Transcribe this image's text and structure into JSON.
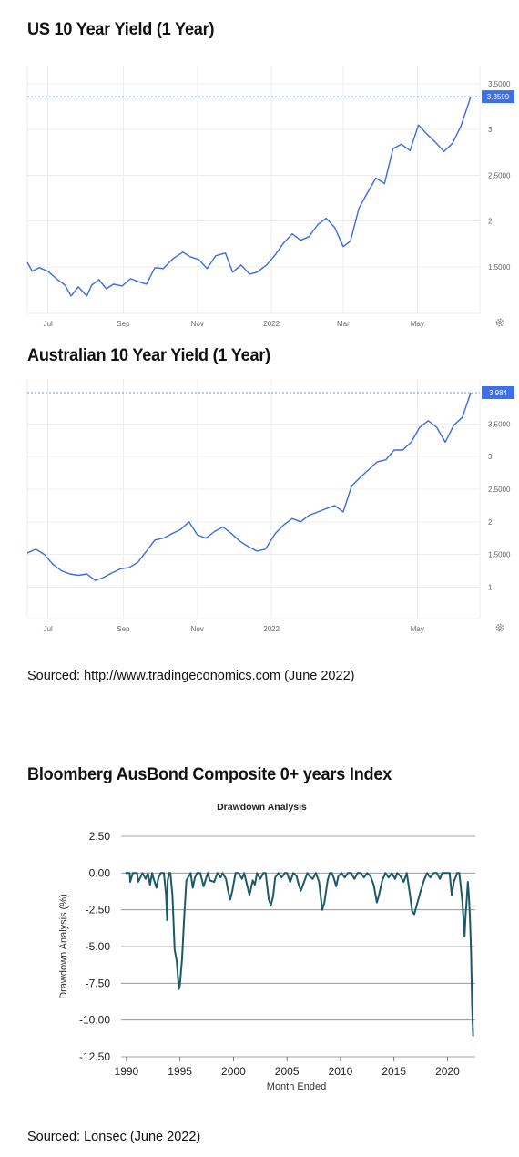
{
  "sections": [
    {
      "title": "US 10 Year Yield (1 Year)"
    },
    {
      "title": "Australian 10 Year Yield (1 Year)"
    },
    {
      "title": "Bloomberg AusBond  Composite 0+ years Index"
    }
  ],
  "sources": [
    "Sourced: http://www.tradingeconomics.com (June 2022)",
    "Sourced: Lonsec (June 2022)"
  ],
  "colors": {
    "line_blue": "#3b6bde",
    "badge_blue": "#3d6fe8",
    "drawdown_teal": "#1e5a66",
    "grid": "#ececec",
    "dd_grid": "#888888"
  },
  "chart_data": [
    {
      "type": "line",
      "title": "US 10 Year Yield (1 Year)",
      "x_tick_labels": [
        "Jul",
        "Sep",
        "Nov",
        "2022",
        "Mar",
        "May"
      ],
      "y_tick_labels": [
        "1.5000",
        "2",
        "2.5000",
        "3",
        "3.5000"
      ],
      "ylim": [
        1.05,
        3.6
      ],
      "last_value_label": "3.3599",
      "settings_icon": "gear-icon",
      "series": [
        {
          "x": [
            "2021-06-14",
            "2021-06-18",
            "2021-06-24",
            "2021-07-01",
            "2021-07-08",
            "2021-07-15",
            "2021-07-20",
            "2021-07-26",
            "2021-08-02",
            "2021-08-06",
            "2021-08-12",
            "2021-08-18",
            "2021-08-24",
            "2021-08-31",
            "2021-09-07",
            "2021-09-13",
            "2021-09-20",
            "2021-09-27",
            "2021-10-04",
            "2021-10-12",
            "2021-10-20",
            "2021-10-26",
            "2021-11-02",
            "2021-11-09",
            "2021-11-16",
            "2021-11-24",
            "2021-11-30",
            "2021-12-07",
            "2021-12-14",
            "2021-12-20",
            "2021-12-28",
            "2022-01-04",
            "2022-01-11",
            "2022-01-18",
            "2022-01-25",
            "2022-02-01",
            "2022-02-08",
            "2022-02-15",
            "2022-02-22",
            "2022-03-01",
            "2022-03-07",
            "2022-03-14",
            "2022-03-21",
            "2022-03-28",
            "2022-04-04",
            "2022-04-11",
            "2022-04-18",
            "2022-04-25",
            "2022-05-02",
            "2022-05-09",
            "2022-05-16",
            "2022-05-23",
            "2022-05-30",
            "2022-06-06",
            "2022-06-14"
          ],
          "values": [
            1.55,
            1.45,
            1.49,
            1.45,
            1.37,
            1.3,
            1.18,
            1.28,
            1.18,
            1.3,
            1.36,
            1.26,
            1.31,
            1.29,
            1.37,
            1.34,
            1.31,
            1.49,
            1.48,
            1.59,
            1.66,
            1.61,
            1.58,
            1.48,
            1.62,
            1.65,
            1.44,
            1.52,
            1.42,
            1.44,
            1.52,
            1.63,
            1.76,
            1.86,
            1.79,
            1.83,
            1.96,
            2.03,
            1.93,
            1.72,
            1.78,
            2.14,
            2.31,
            2.47,
            2.41,
            2.79,
            2.84,
            2.77,
            3.05,
            2.95,
            2.86,
            2.76,
            2.85,
            3.04,
            3.36
          ]
        }
      ]
    },
    {
      "type": "line",
      "title": "Australian 10 Year Yield (1 Year)",
      "x_tick_labels": [
        "Jul",
        "Sep",
        "Nov",
        "2022",
        "May"
      ],
      "y_tick_labels": [
        "1",
        "1.5000",
        "2",
        "2.5000",
        "3",
        "3.5000"
      ],
      "ylim": [
        0.6,
        4.05
      ],
      "last_value_label": "3.984",
      "settings_icon": "gear-icon",
      "series": [
        {
          "x": [
            "2021-06-14",
            "2021-06-21",
            "2021-06-28",
            "2021-07-05",
            "2021-07-12",
            "2021-07-19",
            "2021-07-26",
            "2021-08-02",
            "2021-08-09",
            "2021-08-16",
            "2021-08-23",
            "2021-08-30",
            "2021-09-06",
            "2021-09-13",
            "2021-09-20",
            "2021-09-27",
            "2021-10-04",
            "2021-10-11",
            "2021-10-18",
            "2021-10-25",
            "2021-11-01",
            "2021-11-08",
            "2021-11-15",
            "2021-11-22",
            "2021-11-29",
            "2021-12-06",
            "2021-12-13",
            "2021-12-20",
            "2021-12-27",
            "2022-01-04",
            "2022-01-11",
            "2022-01-18",
            "2022-01-25",
            "2022-02-01",
            "2022-02-08",
            "2022-02-15",
            "2022-02-22",
            "2022-03-01",
            "2022-03-08",
            "2022-03-15",
            "2022-03-22",
            "2022-03-29",
            "2022-04-05",
            "2022-04-12",
            "2022-04-19",
            "2022-04-26",
            "2022-05-03",
            "2022-05-10",
            "2022-05-17",
            "2022-05-24",
            "2022-05-31",
            "2022-06-07",
            "2022-06-14"
          ],
          "values": [
            1.52,
            1.58,
            1.5,
            1.35,
            1.25,
            1.2,
            1.18,
            1.2,
            1.1,
            1.15,
            1.22,
            1.28,
            1.3,
            1.38,
            1.55,
            1.72,
            1.75,
            1.82,
            1.88,
            2.0,
            1.8,
            1.75,
            1.85,
            1.92,
            1.82,
            1.7,
            1.62,
            1.55,
            1.58,
            1.82,
            1.95,
            2.05,
            2.0,
            2.1,
            2.15,
            2.2,
            2.25,
            2.15,
            2.55,
            2.68,
            2.8,
            2.92,
            2.95,
            3.1,
            3.1,
            3.22,
            3.45,
            3.55,
            3.45,
            3.22,
            3.48,
            3.6,
            3.98
          ]
        }
      ]
    },
    {
      "type": "line",
      "title": "Drawdown Analysis",
      "xlabel": "Month Ended",
      "ylabel": "Drawdown Analysis (%)",
      "x_tick_labels": [
        "1990",
        "1995",
        "2000",
        "2005",
        "2010",
        "2015",
        "2020"
      ],
      "y_tick_labels": [
        "2.50",
        "0.00",
        "-2.50",
        "-5.00",
        "-7.50",
        "-10.00",
        "-12.50"
      ],
      "xlim": [
        1989.5,
        2022.6
      ],
      "ylim": [
        -12.5,
        2.5
      ],
      "grid": true,
      "series": [
        {
          "x": [
            1989.9,
            1990.3,
            1990.35,
            1990.6,
            1991.0,
            1991.1,
            1991.5,
            1991.8,
            1992.0,
            1992.2,
            1992.4,
            1992.5,
            1992.8,
            1993.0,
            1993.2,
            1993.5,
            1993.7,
            1993.8,
            1993.85,
            1994.0,
            1994.1,
            1994.3,
            1994.5,
            1994.7,
            1994.9,
            1995.0,
            1995.2,
            1995.4,
            1995.6,
            1996.0,
            1996.2,
            1996.4,
            1996.6,
            1996.9,
            1997.2,
            1997.6,
            1997.8,
            1998.2,
            1998.5,
            1998.8,
            1999.0,
            1999.3,
            1999.5,
            1999.7,
            1999.9,
            2000.2,
            2000.5,
            2000.8,
            2001.0,
            2001.2,
            2001.5,
            2001.8,
            2002.0,
            2002.2,
            2002.5,
            2002.8,
            2003.0,
            2003.3,
            2003.5,
            2003.7,
            2003.9,
            2004.2,
            2004.5,
            2004.8,
            2005.0,
            2005.3,
            2005.6,
            2005.9,
            2006.1,
            2006.3,
            2006.6,
            2006.9,
            2007.1,
            2007.4,
            2007.7,
            2008.0,
            2008.3,
            2008.5,
            2008.8,
            2009.0,
            2009.2,
            2009.4,
            2009.6,
            2009.8,
            2010.1,
            2010.4,
            2010.7,
            2011.0,
            2011.3,
            2011.6,
            2011.9,
            2012.2,
            2012.5,
            2012.8,
            2013.1,
            2013.4,
            2013.6,
            2013.9,
            2014.2,
            2014.5,
            2014.8,
            2015.1,
            2015.3,
            2015.6,
            2015.9,
            2016.2,
            2016.5,
            2016.7,
            2016.9,
            2017.2,
            2017.5,
            2017.8,
            2018.1,
            2018.4,
            2018.7,
            2019.0,
            2019.3,
            2019.5,
            2019.8,
            2020.0,
            2020.2,
            2020.4,
            2020.6,
            2020.9,
            2021.1,
            2021.2,
            2021.4,
            2021.6,
            2021.7,
            2021.8,
            2021.9,
            2022.0,
            2022.1,
            2022.2,
            2022.3,
            2022.4
          ],
          "values": [
            0,
            0,
            -0.6,
            0,
            0,
            -0.6,
            0,
            -0.4,
            0,
            -0.8,
            0,
            -0.3,
            -1.0,
            -0.3,
            0,
            0,
            -1.5,
            -3.2,
            -0.5,
            0,
            0,
            -1.5,
            -5.2,
            -6.0,
            -7.9,
            -7.6,
            -5.8,
            -3.0,
            -0.5,
            0,
            -1.0,
            -0.3,
            0,
            0,
            -0.9,
            0,
            -0.5,
            -0.6,
            0,
            -0.3,
            0,
            -0.4,
            -1.2,
            -1.8,
            -1.2,
            0,
            0,
            -0.4,
            0,
            -0.6,
            -1.5,
            -0.5,
            -0.8,
            0,
            -0.4,
            0,
            0,
            -1.8,
            -2.2,
            -1.6,
            -0.3,
            0,
            -0.3,
            0,
            0,
            -0.6,
            0,
            -0.2,
            -0.8,
            -1.2,
            -0.6,
            0,
            -0.2,
            -0.4,
            0,
            -0.6,
            -2.5,
            -2.0,
            -0.5,
            0,
            0,
            -0.4,
            -0.9,
            -0.2,
            0,
            -0.3,
            0,
            0,
            -0.4,
            0,
            0,
            -0.3,
            0,
            -0.2,
            -0.8,
            -2.0,
            -1.5,
            -0.5,
            0,
            -0.3,
            0,
            -0.4,
            0,
            -0.2,
            -0.6,
            0,
            -1.5,
            -2.6,
            -2.8,
            -2.0,
            -1.2,
            -0.5,
            0,
            -0.3,
            0,
            0,
            -0.4,
            0,
            0,
            0,
            0,
            -1.5,
            -0.6,
            0,
            0,
            -0.6,
            -2.0,
            -4.3,
            -2.8,
            -1.8,
            -0.6,
            -1.5,
            -3.0,
            -5.2,
            -9.0,
            -11.1
          ]
        }
      ]
    }
  ]
}
